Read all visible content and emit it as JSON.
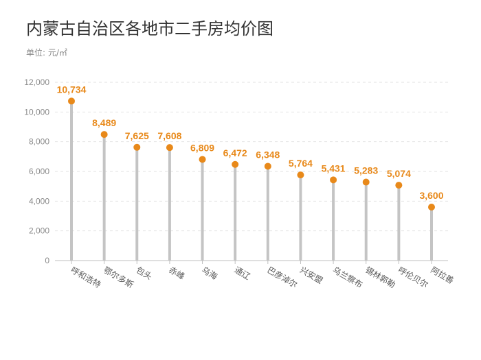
{
  "title": "内蒙古自治区各地市二手房均价图",
  "unit_label": "单位: 元/㎡",
  "chart_data": {
    "type": "lollipop",
    "title": "内蒙古自治区各地市二手房均价图",
    "ylabel": "单位: 元/㎡",
    "categories": [
      "呼和浩特",
      "鄂尔多斯",
      "包头",
      "赤峰",
      "乌海",
      "通辽",
      "巴彦淖尔",
      "兴安盟",
      "乌兰察布",
      "锡林郭勒",
      "呼伦贝尔",
      "阿拉善"
    ],
    "values": [
      10734,
      8489,
      7625,
      7608,
      6809,
      6472,
      6348,
      5764,
      5431,
      5283,
      5074,
      3600
    ],
    "value_labels": [
      "10,734",
      "8,489",
      "7,625",
      "7,608",
      "6,809",
      "6,472",
      "6,348",
      "5,764",
      "5,431",
      "5,283",
      "5,074",
      "3,600"
    ],
    "ylim": [
      0,
      12000
    ],
    "yticks": [
      0,
      2000,
      4000,
      6000,
      8000,
      10000,
      12000
    ],
    "ytick_labels": [
      "0",
      "2,000",
      "4,000",
      "6,000",
      "8,000",
      "10,000",
      "12,000"
    ],
    "grid": true,
    "colors": {
      "stem": "#c4c4c4",
      "marker": "#e8891a",
      "label": "#e8891a",
      "grid": "#e2e2e2",
      "axis": "#bfbfbf"
    }
  }
}
